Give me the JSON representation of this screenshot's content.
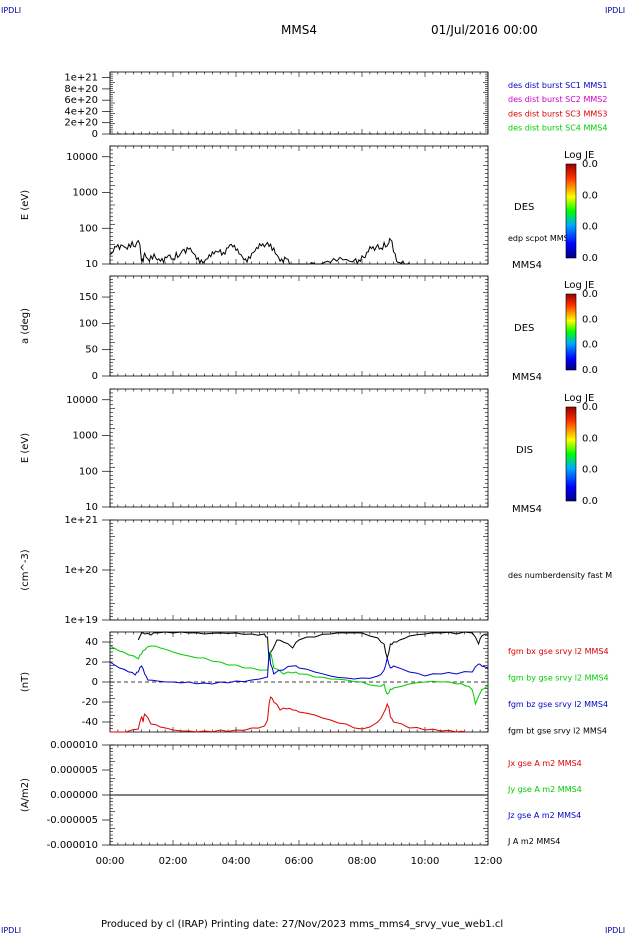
{
  "corner_tag": "IPDLI",
  "header": {
    "satellite": "MMS4",
    "datetime": "01/Jul/2016 00:00"
  },
  "footer": "Produced by cl (IRAP)   Printing date: 27/Nov/2023   mms_mms4_srvy_vue_web1.cl",
  "x_axis": {
    "ticks": [
      "00:00",
      "02:00",
      "04:00",
      "06:00",
      "08:00",
      "10:00",
      "12:00"
    ]
  },
  "colors": {
    "blue": "#0000cc",
    "magenta": "#cc00cc",
    "red": "#dd0000",
    "green": "#00cc00",
    "black": "#000000"
  },
  "chart_data": [
    {
      "type": "line",
      "panel": "dist-burst",
      "yticks": [
        "1e+21",
        "8e+20",
        "6e+20",
        "4e+20",
        "2e+20",
        "0"
      ],
      "ylim": [
        0,
        1.1e+21
      ],
      "reference_line": 0,
      "legend": [
        {
          "name": "des dist burst SC1 MMS1",
          "color": "#0000cc"
        },
        {
          "name": "des dist burst SC2 MMS2",
          "color": "#cc00cc"
        },
        {
          "name": "des dist burst SC3 MMS3",
          "color": "#dd0000"
        },
        {
          "name": "des dist burst SC4 MMS4",
          "color": "#00cc00"
        }
      ]
    },
    {
      "type": "line",
      "panel": "des-energy",
      "ylabel": "E (eV)",
      "yscale": "log",
      "ylim": [
        10,
        20000
      ],
      "yticks": [
        "10000",
        "1000",
        "100",
        "10"
      ],
      "label": "DES",
      "overlay_label": "edp scpot MMS4",
      "sat_label": "MMS4",
      "colorbar": {
        "title": "Log JE",
        "ticks": [
          "0.0",
          "0.0",
          "0.0",
          "0.0"
        ]
      },
      "series": [
        {
          "name": "edp scpot MMS4",
          "x": [
            0.0,
            0.1,
            0.2,
            0.3,
            0.4,
            0.5,
            0.6,
            0.7,
            0.8,
            0.9,
            1.0,
            1.05,
            1.1,
            1.2,
            1.3,
            1.4,
            1.5,
            1.6,
            1.7,
            1.8,
            1.9,
            2.0,
            2.1,
            2.2,
            2.3,
            2.4,
            2.5,
            2.6,
            2.7,
            2.8,
            2.9,
            3.0,
            3.1,
            3.2,
            3.3,
            3.4,
            3.5,
            3.6,
            3.7,
            3.8,
            3.9,
            4.0,
            4.1,
            4.2,
            4.3,
            4.4,
            4.5,
            4.6,
            4.7,
            4.8,
            4.9,
            5.0,
            5.1,
            5.2,
            5.3,
            5.4,
            5.5,
            5.6,
            5.7,
            6.3,
            6.4,
            6.6,
            6.8,
            7.0,
            7.2,
            7.4,
            7.6,
            7.8,
            7.9,
            8.0,
            8.1,
            8.2,
            8.3,
            8.4,
            8.5,
            8.6,
            8.7,
            8.8,
            8.85,
            8.9,
            9.0,
            9.1,
            9.2,
            9.3,
            9.4,
            9.5
          ],
          "y": [
            18,
            22,
            30,
            26,
            33,
            29,
            36,
            42,
            30,
            45,
            12,
            11,
            20,
            14,
            17,
            19,
            13,
            12,
            11,
            15,
            18,
            14,
            21,
            17,
            24,
            20,
            26,
            22,
            18,
            15,
            13,
            12,
            14,
            16,
            19,
            22,
            25,
            21,
            28,
            34,
            30,
            24,
            19,
            16,
            14,
            16,
            20,
            23,
            27,
            32,
            30,
            40,
            36,
            28,
            18,
            12,
            11,
            14,
            10,
            10,
            11,
            10,
            11,
            11,
            12,
            13,
            12,
            14,
            13,
            17,
            15,
            22,
            27,
            24,
            35,
            28,
            40,
            32,
            38,
            48,
            22,
            12,
            11,
            12,
            10,
            11
          ]
        }
      ]
    },
    {
      "type": "heatmap",
      "panel": "des-pitch",
      "ylabel": "a (deg)",
      "ylim": [
        0,
        190
      ],
      "yticks": [
        "150",
        "100",
        "50",
        "0"
      ],
      "label": "DES",
      "sat_label": "MMS4",
      "colorbar": {
        "title": "Log JE",
        "ticks": [
          "0.0",
          "0.0",
          "0.0",
          "0.0"
        ]
      }
    },
    {
      "type": "heatmap",
      "panel": "dis-energy",
      "ylabel": "E (eV)",
      "yscale": "log",
      "ylim": [
        10,
        20000
      ],
      "yticks": [
        "10000",
        "1000",
        "100",
        "10"
      ],
      "label": "DIS",
      "sat_label": "MMS4",
      "colorbar": {
        "title": "Log JE",
        "ticks": [
          "0.0",
          "0.0",
          "0.0",
          "0.0"
        ]
      }
    },
    {
      "type": "line",
      "panel": "density",
      "ylabel": "(cm^-3)",
      "yscale": "log",
      "ylim": [
        1e+19,
        1e+21
      ],
      "yticks": [
        "1e+21",
        "1e+20",
        "1e+19"
      ],
      "legend": [
        {
          "name": "des numberdensity fast M",
          "color": "#000000"
        }
      ]
    },
    {
      "type": "line",
      "panel": "fgm",
      "ylabel": "(nT)",
      "ylim": [
        -50,
        50
      ],
      "yticks": [
        "40",
        "20",
        "0",
        "-20",
        "-40"
      ],
      "reference_line": 0,
      "legend": [
        {
          "name": "fgm bx gse srvy l2 MMS4",
          "color": "#dd0000"
        },
        {
          "name": "fgm by gse srvy l2 MMS4",
          "color": "#00cc00"
        },
        {
          "name": "fgm bz gse srvy l2 MMS4",
          "color": "#0000cc"
        },
        {
          "name": "fgm bt gse srvy l2 MMS4",
          "color": "#000000"
        }
      ],
      "series": [
        {
          "name": "fgm bt gse srvy l2 MMS4",
          "color": "#000000",
          "x": [
            0.9,
            1.0,
            1.1,
            1.3,
            1.5,
            2.0,
            2.5,
            3.0,
            3.5,
            4.0,
            4.5,
            4.9,
            5.0,
            5.05,
            5.1,
            5.2,
            5.3,
            5.5,
            5.8,
            6.0,
            6.5,
            7.0,
            7.5,
            8.0,
            8.5,
            8.7,
            8.8,
            8.9,
            9.0,
            9.2,
            9.5,
            10.0,
            10.5,
            11.0,
            11.5,
            11.7,
            11.8,
            12.0
          ],
          "y": [
            42,
            49,
            48,
            47,
            49,
            49,
            49,
            48,
            49,
            49,
            48,
            48,
            45,
            22,
            30,
            35,
            42,
            40,
            34,
            42,
            45,
            48,
            49,
            49,
            44,
            38,
            24,
            38,
            40,
            42,
            46,
            48,
            49,
            48,
            49,
            38,
            46,
            48
          ]
        },
        {
          "name": "fgm by gse srvy l2 MMS4",
          "color": "#00cc00",
          "x": [
            0.0,
            0.3,
            0.6,
            0.9,
            1.0,
            1.1,
            1.3,
            1.6,
            2.0,
            2.5,
            3.0,
            3.5,
            4.0,
            4.5,
            5.0,
            5.05,
            5.1,
            5.2,
            5.5,
            5.8,
            6.0,
            6.5,
            7.0,
            7.5,
            8.0,
            8.5,
            8.7,
            8.8,
            8.9,
            9.0,
            9.5,
            10.0,
            10.5,
            11.0,
            11.3,
            11.5,
            11.6,
            11.8,
            12.0
          ],
          "y": [
            36,
            31,
            27,
            23,
            28,
            32,
            36,
            34,
            30,
            26,
            24,
            20,
            17,
            14,
            12,
            24,
            30,
            14,
            8,
            9,
            8,
            5,
            3,
            2,
            0,
            -4,
            -2,
            -12,
            -7,
            -6,
            -2,
            0,
            0,
            -2,
            -4,
            -8,
            -22,
            -8,
            -4
          ]
        },
        {
          "name": "fgm bz gse srvy l2 MMS4",
          "color": "#0000cc",
          "x": [
            0.0,
            0.3,
            0.6,
            0.8,
            0.9,
            1.0,
            1.1,
            1.2,
            1.5,
            2.0,
            2.5,
            3.0,
            3.5,
            4.0,
            4.5,
            5.0,
            5.05,
            5.1,
            5.2,
            5.5,
            5.8,
            6.0,
            6.5,
            7.0,
            7.5,
            8.0,
            8.5,
            8.7,
            8.8,
            8.9,
            9.0,
            9.5,
            10.0,
            10.5,
            11.0,
            11.5,
            11.7,
            11.8,
            12.0
          ],
          "y": [
            20,
            14,
            10,
            7,
            10,
            16,
            8,
            2,
            1,
            0,
            0,
            -1,
            0,
            1,
            2,
            5,
            30,
            18,
            8,
            12,
            16,
            14,
            10,
            6,
            4,
            4,
            6,
            12,
            24,
            14,
            16,
            10,
            6,
            8,
            8,
            10,
            18,
            16,
            14
          ]
        },
        {
          "name": "fgm bx gse srvy l2 MMS4",
          "color": "#dd0000",
          "x": [
            0.0,
            0.5,
            0.9,
            1.0,
            1.05,
            1.1,
            1.3,
            1.6,
            2.0,
            2.5,
            3.0,
            3.5,
            4.0,
            4.5,
            4.9,
            5.0,
            5.05,
            5.1,
            5.2,
            5.4,
            5.6,
            5.8,
            6.0,
            6.5,
            7.0,
            7.5,
            8.0,
            8.5,
            8.7,
            8.8,
            8.85,
            8.9,
            9.0,
            9.5,
            10.0,
            10.5,
            11.0,
            11.3
          ],
          "y": [
            -50,
            -50,
            -47,
            -35,
            -40,
            -32,
            -42,
            -45,
            -48,
            -49,
            -49,
            -48,
            -48,
            -46,
            -44,
            -38,
            -22,
            -15,
            -20,
            -28,
            -27,
            -28,
            -30,
            -33,
            -38,
            -42,
            -47,
            -40,
            -30,
            -22,
            -25,
            -35,
            -40,
            -46,
            -48,
            -49,
            -50,
            -50
          ]
        }
      ]
    },
    {
      "type": "line",
      "panel": "current",
      "ylabel": "(A/m2)",
      "ylim": [
        -1e-05,
        1e-05
      ],
      "yticks": [
        "0.000010",
        "0.000005",
        "0.000000",
        "-0.000005",
        "-0.000010"
      ],
      "legend": [
        {
          "name": "Jx gse A m2 MMS4",
          "color": "#dd0000"
        },
        {
          "name": "Jy gse A m2 MMS4",
          "color": "#00cc00"
        },
        {
          "name": "Jz gse A m2 MMS4",
          "color": "#0000cc"
        },
        {
          "name": "J A m2 MMS4",
          "color": "#000000"
        }
      ],
      "series": [
        {
          "name": "Jx gse A m2 MMS4",
          "color": "#dd0000",
          "x": [
            0,
            12
          ],
          "y": [
            0,
            0
          ]
        },
        {
          "name": "Jy gse A m2 MMS4",
          "color": "#00cc00",
          "x": [
            0,
            12
          ],
          "y": [
            0,
            0
          ]
        },
        {
          "name": "Jz gse A m2 MMS4",
          "color": "#0000cc",
          "x": [
            0,
            12
          ],
          "y": [
            0,
            0
          ]
        },
        {
          "name": "J A m2 MMS4",
          "color": "#000000",
          "x": [
            0,
            12
          ],
          "y": [
            0,
            0
          ]
        }
      ]
    }
  ]
}
